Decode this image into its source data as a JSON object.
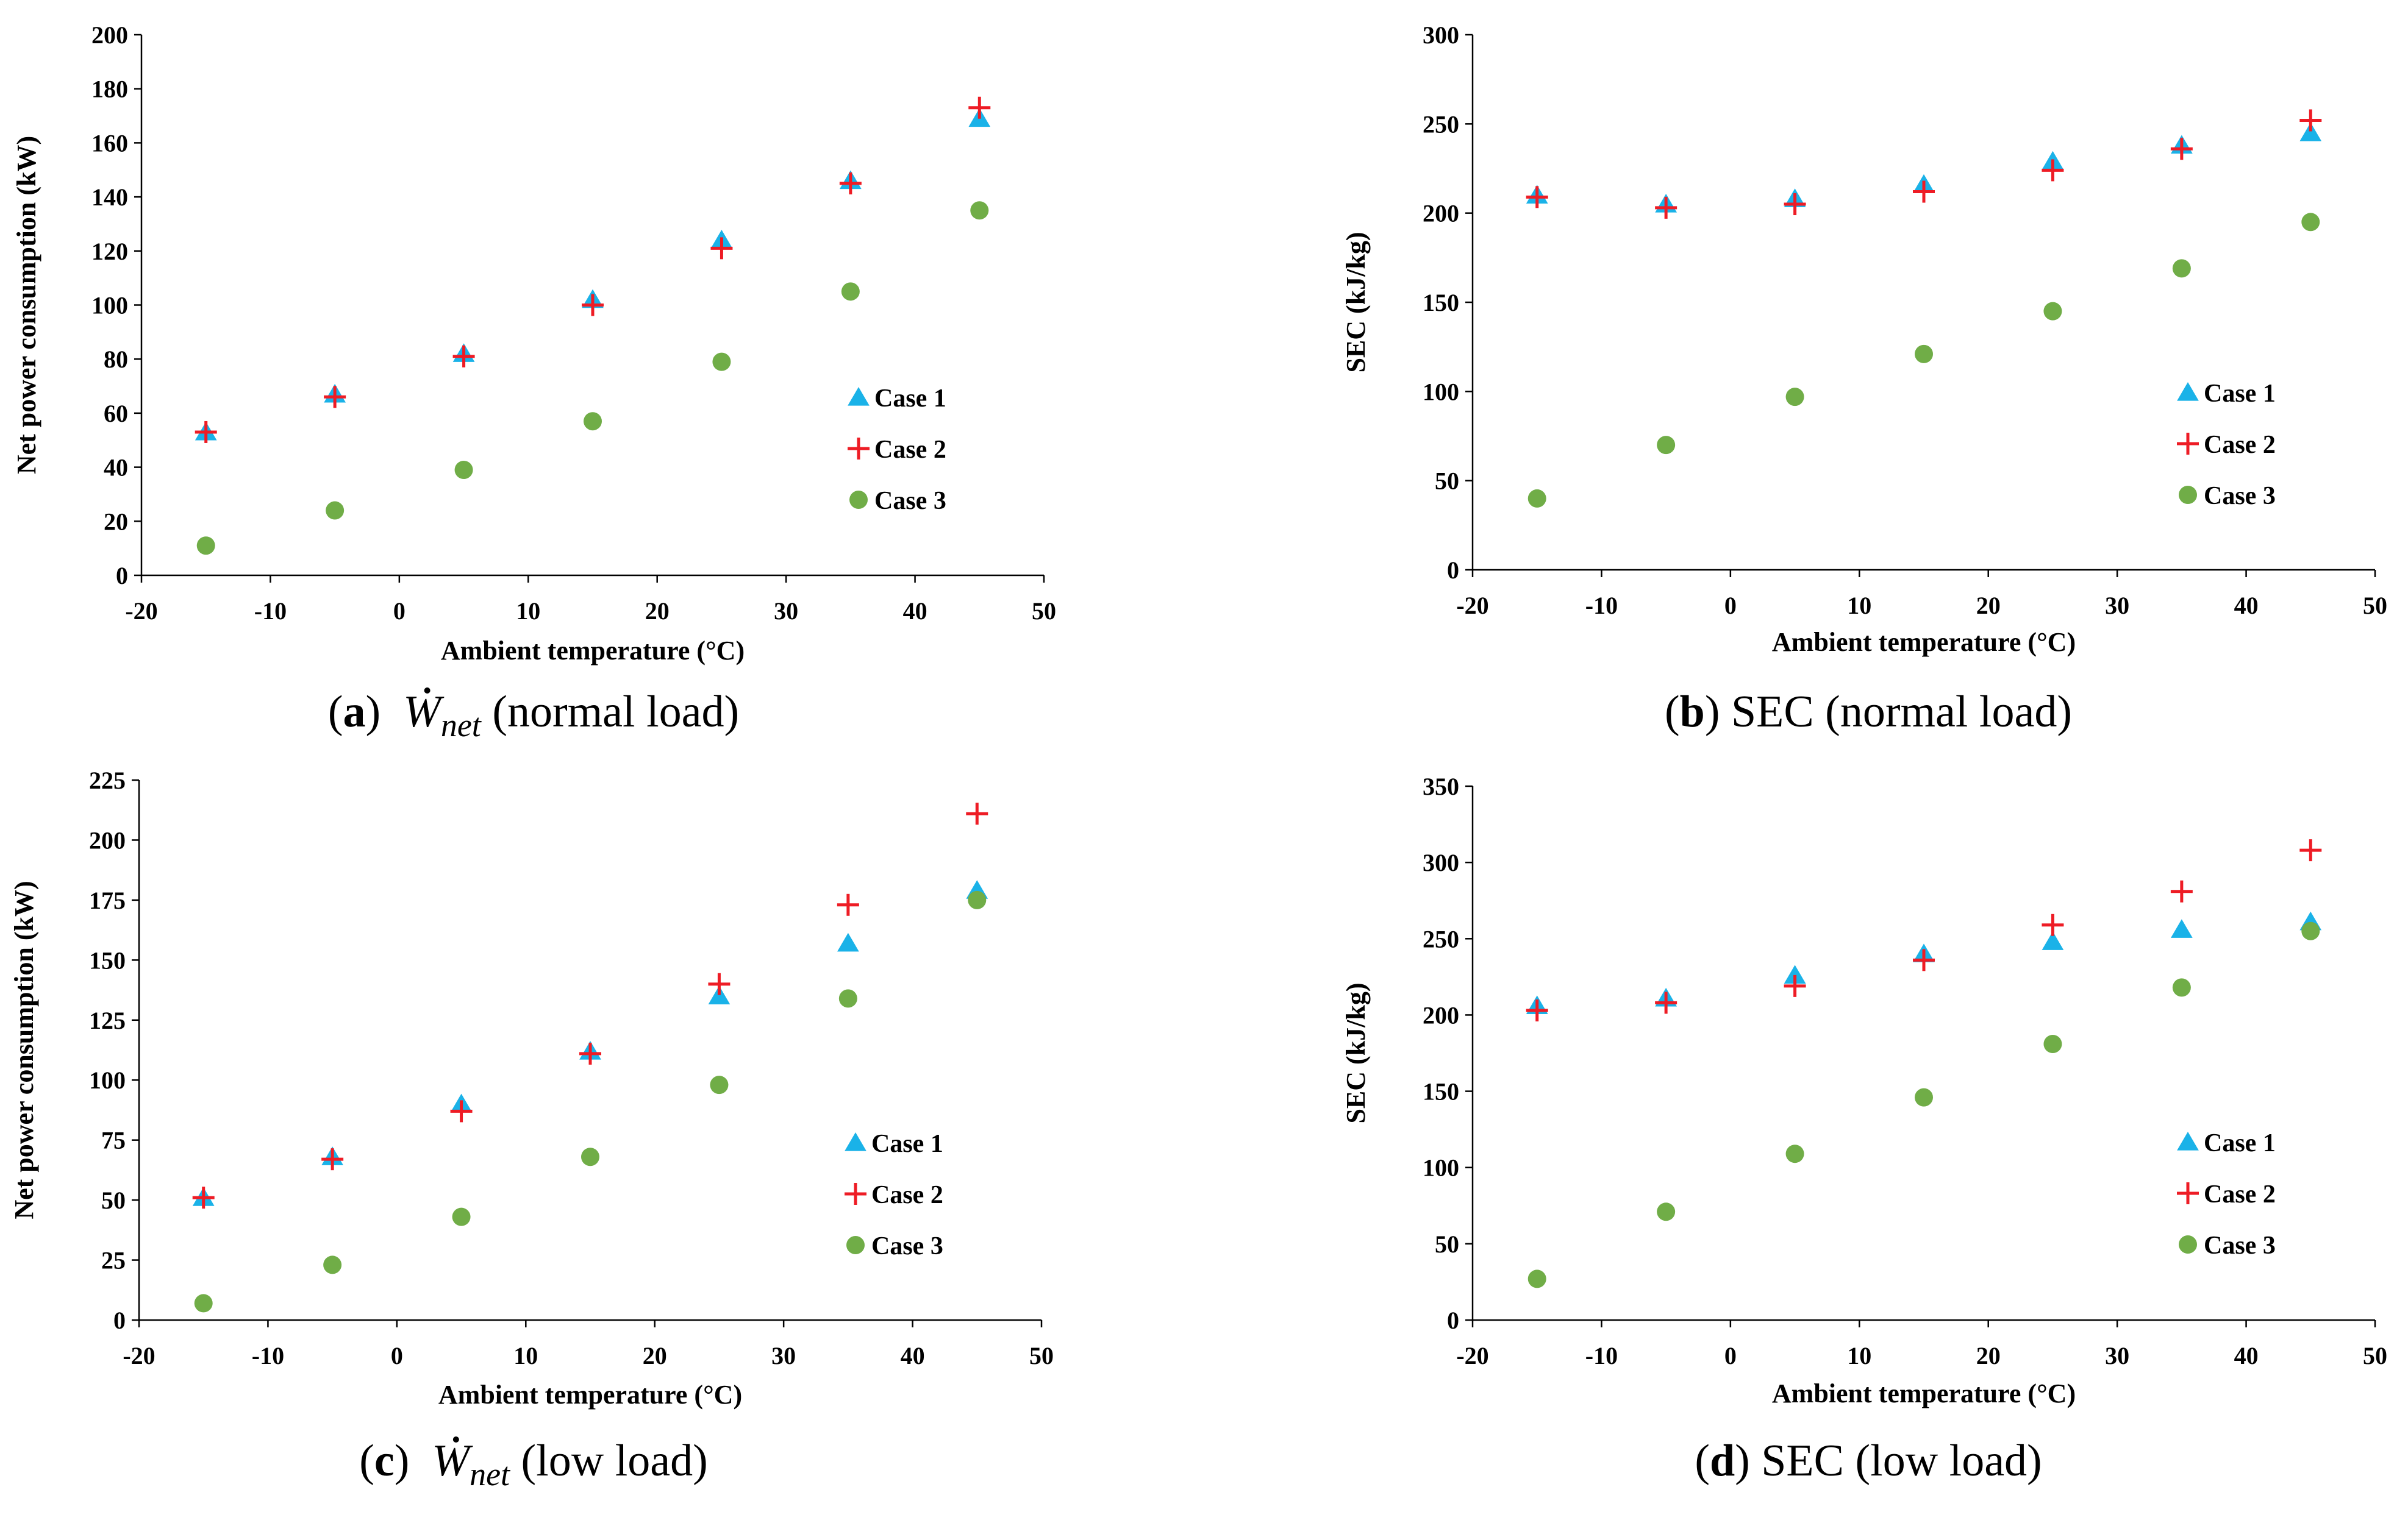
{
  "colors": {
    "case1": "#1ab2e8",
    "case2": "#ee1c25",
    "case3": "#70ad47",
    "axis": "#000000"
  },
  "chart_data": [
    {
      "id": "a",
      "type": "scatter",
      "caption": {
        "letter": "a",
        "math_base": "W",
        "math_sub": "net",
        "suffix": " (normal load)"
      },
      "xlabel": "Ambient temperature (°C)",
      "ylabel": "Net power consumption (kW)",
      "xlim": [
        -20,
        50
      ],
      "ylim": [
        0,
        200
      ],
      "xticks": [
        -20,
        -10,
        0,
        10,
        20,
        30,
        40,
        50
      ],
      "yticks": [
        0,
        20,
        40,
        60,
        80,
        100,
        120,
        140,
        160,
        180,
        200
      ],
      "grid": false,
      "legend_position": "center-right",
      "x": [
        -15,
        -5,
        5,
        15,
        25,
        35,
        45
      ],
      "series": [
        {
          "name": "Case 1",
          "marker": "triangle",
          "values": [
            53,
            67,
            82,
            102,
            124,
            146,
            169
          ]
        },
        {
          "name": "Case 2",
          "marker": "plus",
          "values": [
            53,
            66,
            81,
            100,
            121,
            145,
            173
          ]
        },
        {
          "name": "Case 3",
          "marker": "circle",
          "values": [
            11,
            24,
            39,
            57,
            79,
            105,
            135
          ]
        }
      ]
    },
    {
      "id": "b",
      "type": "scatter",
      "caption": {
        "letter": "b",
        "text": " SEC (normal load)"
      },
      "xlabel": "Ambient temperature (°C)",
      "ylabel": "SEC (kJ/kg)",
      "xlim": [
        -20,
        50
      ],
      "ylim": [
        0,
        300
      ],
      "xticks": [
        -20,
        -10,
        0,
        10,
        20,
        30,
        40,
        50
      ],
      "yticks": [
        0,
        50,
        100,
        150,
        200,
        250,
        300
      ],
      "grid": false,
      "legend_position": "center-right",
      "x": [
        -15,
        -5,
        5,
        15,
        25,
        35,
        45
      ],
      "series": [
        {
          "name": "Case 1",
          "marker": "triangle",
          "values": [
            210,
            205,
            208,
            216,
            229,
            238,
            245
          ]
        },
        {
          "name": "Case 2",
          "marker": "plus",
          "values": [
            209,
            203,
            205,
            212,
            224,
            236,
            252
          ]
        },
        {
          "name": "Case 3",
          "marker": "circle",
          "values": [
            40,
            70,
            97,
            121,
            145,
            169,
            195
          ]
        }
      ]
    },
    {
      "id": "c",
      "type": "scatter",
      "caption": {
        "letter": "c",
        "math_base": "W",
        "math_sub": "net",
        "suffix": " (low load)"
      },
      "xlabel": "Ambient temperature (°C)",
      "ylabel": "Net power consumption (kW)",
      "xlim": [
        -20,
        50
      ],
      "ylim": [
        0,
        225
      ],
      "xticks": [
        -20,
        -10,
        0,
        10,
        20,
        30,
        40,
        50
      ],
      "yticks": [
        0,
        25,
        50,
        75,
        100,
        125,
        150,
        175,
        200,
        225
      ],
      "grid": false,
      "legend_position": "center-right",
      "x": [
        -15,
        -5,
        5,
        15,
        25,
        35,
        45
      ],
      "series": [
        {
          "name": "Case 1",
          "marker": "triangle",
          "values": [
            51,
            68,
            90,
            112,
            135,
            157,
            179
          ]
        },
        {
          "name": "Case 2",
          "marker": "plus",
          "values": [
            51,
            67,
            87,
            111,
            140,
            173,
            211
          ]
        },
        {
          "name": "Case 3",
          "marker": "circle",
          "values": [
            7,
            23,
            43,
            68,
            98,
            134,
            175
          ]
        }
      ]
    },
    {
      "id": "d",
      "type": "scatter",
      "caption": {
        "letter": "d",
        "text": " SEC (low load)"
      },
      "xlabel": "Ambient temperature (°C)",
      "ylabel": "SEC (kJ/kg)",
      "xlim": [
        -20,
        50
      ],
      "ylim": [
        0,
        350
      ],
      "xticks": [
        -20,
        -10,
        0,
        10,
        20,
        30,
        40,
        50
      ],
      "yticks": [
        0,
        50,
        100,
        150,
        200,
        250,
        300,
        350
      ],
      "grid": false,
      "legend_position": "center-right",
      "x": [
        -15,
        -5,
        5,
        15,
        25,
        35,
        45
      ],
      "series": [
        {
          "name": "Case 1",
          "marker": "triangle",
          "values": [
            206,
            211,
            226,
            240,
            248,
            256,
            261
          ]
        },
        {
          "name": "Case 2",
          "marker": "plus",
          "values": [
            203,
            208,
            219,
            236,
            259,
            281,
            308
          ]
        },
        {
          "name": "Case 3",
          "marker": "circle",
          "values": [
            27,
            71,
            109,
            146,
            181,
            218,
            255
          ]
        }
      ]
    }
  ]
}
